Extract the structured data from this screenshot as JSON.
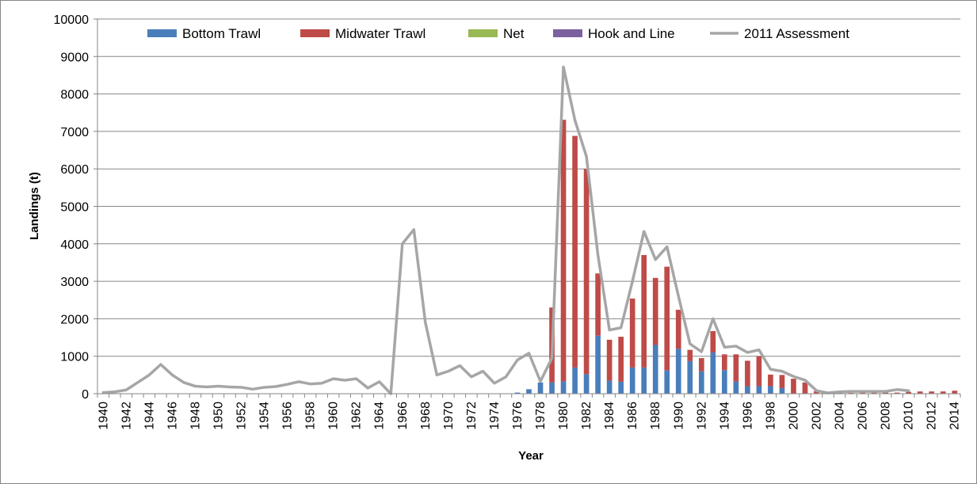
{
  "chart_data": {
    "type": "bar",
    "stacked": true,
    "title": "",
    "xlabel": "Year",
    "ylabel": "Landings (t)",
    "ylim": [
      0,
      10000
    ],
    "yticks": [
      0,
      1000,
      2000,
      3000,
      4000,
      5000,
      6000,
      7000,
      8000,
      9000,
      10000
    ],
    "grid": true,
    "legend_position": "top",
    "categories": [
      "1940",
      "1941",
      "1942",
      "1943",
      "1944",
      "1945",
      "1946",
      "1947",
      "1948",
      "1949",
      "1950",
      "1951",
      "1952",
      "1953",
      "1954",
      "1955",
      "1956",
      "1957",
      "1958",
      "1959",
      "1960",
      "1961",
      "1962",
      "1963",
      "1964",
      "1965",
      "1966",
      "1967",
      "1968",
      "1969",
      "1970",
      "1971",
      "1972",
      "1973",
      "1974",
      "1975",
      "1976",
      "1977",
      "1978",
      "1979",
      "1980",
      "1981",
      "1982",
      "1983",
      "1984",
      "1985",
      "1986",
      "1987",
      "1988",
      "1989",
      "1990",
      "1991",
      "1992",
      "1993",
      "1994",
      "1995",
      "1996",
      "1997",
      "1998",
      "1999",
      "2000",
      "2001",
      "2002",
      "2003",
      "2004",
      "2005",
      "2006",
      "2007",
      "2008",
      "2009",
      "2010",
      "2011",
      "2012",
      "2013",
      "2014"
    ],
    "xtick_labels": [
      "1940",
      "1942",
      "1944",
      "1946",
      "1948",
      "1950",
      "1952",
      "1954",
      "1956",
      "1958",
      "1960",
      "1962",
      "1964",
      "1966",
      "1968",
      "1970",
      "1972",
      "1974",
      "1976",
      "1978",
      "1980",
      "1982",
      "1984",
      "1986",
      "1988",
      "1990",
      "1992",
      "1994",
      "1996",
      "1998",
      "2000",
      "2002",
      "2004",
      "2006",
      "2008",
      "2010",
      "2012",
      "2014"
    ],
    "series": [
      {
        "name": "Bottom Trawl",
        "kind": "bar",
        "color": "#4a7ebb",
        "values": [
          10,
          10,
          10,
          10,
          10,
          10,
          10,
          10,
          10,
          10,
          10,
          10,
          10,
          10,
          10,
          10,
          10,
          10,
          10,
          10,
          10,
          10,
          10,
          10,
          10,
          10,
          10,
          10,
          10,
          10,
          10,
          10,
          10,
          10,
          10,
          10,
          30,
          120,
          300,
          300,
          330,
          700,
          520,
          1550,
          350,
          320,
          700,
          700,
          1300,
          620,
          1200,
          870,
          600,
          1100,
          630,
          320,
          200,
          200,
          200,
          150,
          0,
          0,
          0,
          0,
          0,
          0,
          0,
          0,
          0,
          0,
          0,
          0,
          0,
          0,
          0
        ]
      },
      {
        "name": "Midwater Trawl",
        "kind": "bar",
        "color": "#be4b48",
        "values": [
          0,
          0,
          0,
          0,
          0,
          0,
          0,
          0,
          0,
          0,
          0,
          0,
          0,
          0,
          0,
          0,
          0,
          0,
          0,
          0,
          0,
          0,
          0,
          0,
          0,
          0,
          0,
          0,
          0,
          0,
          0,
          0,
          0,
          0,
          0,
          0,
          0,
          0,
          0,
          2000,
          6980,
          6180,
          5480,
          1660,
          1090,
          1200,
          1840,
          3000,
          1790,
          2770,
          1040,
          300,
          350,
          570,
          420,
          730,
          680,
          800,
          310,
          350,
          400,
          300,
          70,
          20,
          20,
          20,
          30,
          30,
          30,
          30,
          50,
          60,
          60,
          60,
          80
        ]
      },
      {
        "name": "Net",
        "kind": "bar",
        "color": "#98b954",
        "values": [
          0,
          0,
          0,
          0,
          0,
          0,
          0,
          0,
          0,
          0,
          0,
          0,
          0,
          0,
          0,
          0,
          0,
          0,
          0,
          0,
          0,
          0,
          0,
          0,
          0,
          0,
          0,
          0,
          0,
          0,
          0,
          0,
          0,
          0,
          0,
          0,
          0,
          0,
          0,
          0,
          0,
          0,
          0,
          0,
          0,
          0,
          0,
          0,
          0,
          0,
          0,
          0,
          0,
          0,
          0,
          0,
          0,
          0,
          0,
          0,
          0,
          0,
          0,
          0,
          0,
          0,
          0,
          0,
          0,
          0,
          0,
          0,
          0,
          0,
          0
        ]
      },
      {
        "name": "Hook and Line",
        "kind": "bar",
        "color": "#7d60a0",
        "values": [
          0,
          0,
          0,
          0,
          0,
          0,
          0,
          0,
          0,
          0,
          0,
          0,
          0,
          0,
          0,
          0,
          0,
          0,
          0,
          0,
          0,
          0,
          0,
          0,
          0,
          0,
          0,
          0,
          0,
          0,
          0,
          0,
          0,
          0,
          0,
          0,
          0,
          0,
          0,
          0,
          0,
          0,
          0,
          0,
          0,
          0,
          0,
          0,
          0,
          0,
          0,
          0,
          0,
          0,
          0,
          0,
          0,
          0,
          0,
          0,
          0,
          0,
          0,
          0,
          0,
          0,
          0,
          0,
          0,
          0,
          0,
          0,
          0,
          0,
          0
        ]
      },
      {
        "name": "2011 Assessment",
        "kind": "line",
        "color": "#a6a6a6",
        "values": [
          30,
          50,
          100,
          300,
          500,
          780,
          500,
          300,
          200,
          180,
          200,
          180,
          170,
          120,
          170,
          190,
          250,
          320,
          260,
          280,
          400,
          360,
          400,
          150,
          320,
          0,
          4000,
          4380,
          1900,
          500,
          600,
          750,
          450,
          600,
          280,
          450,
          900,
          1080,
          330,
          950,
          8720,
          7300,
          6330,
          3700,
          1700,
          1760,
          3000,
          4330,
          3580,
          3920,
          2600,
          1330,
          1120,
          2000,
          1240,
          1270,
          1100,
          1170,
          650,
          600,
          460,
          360,
          80,
          20,
          50,
          60,
          60,
          60,
          60,
          110,
          80,
          null,
          null,
          null,
          null
        ]
      }
    ]
  }
}
